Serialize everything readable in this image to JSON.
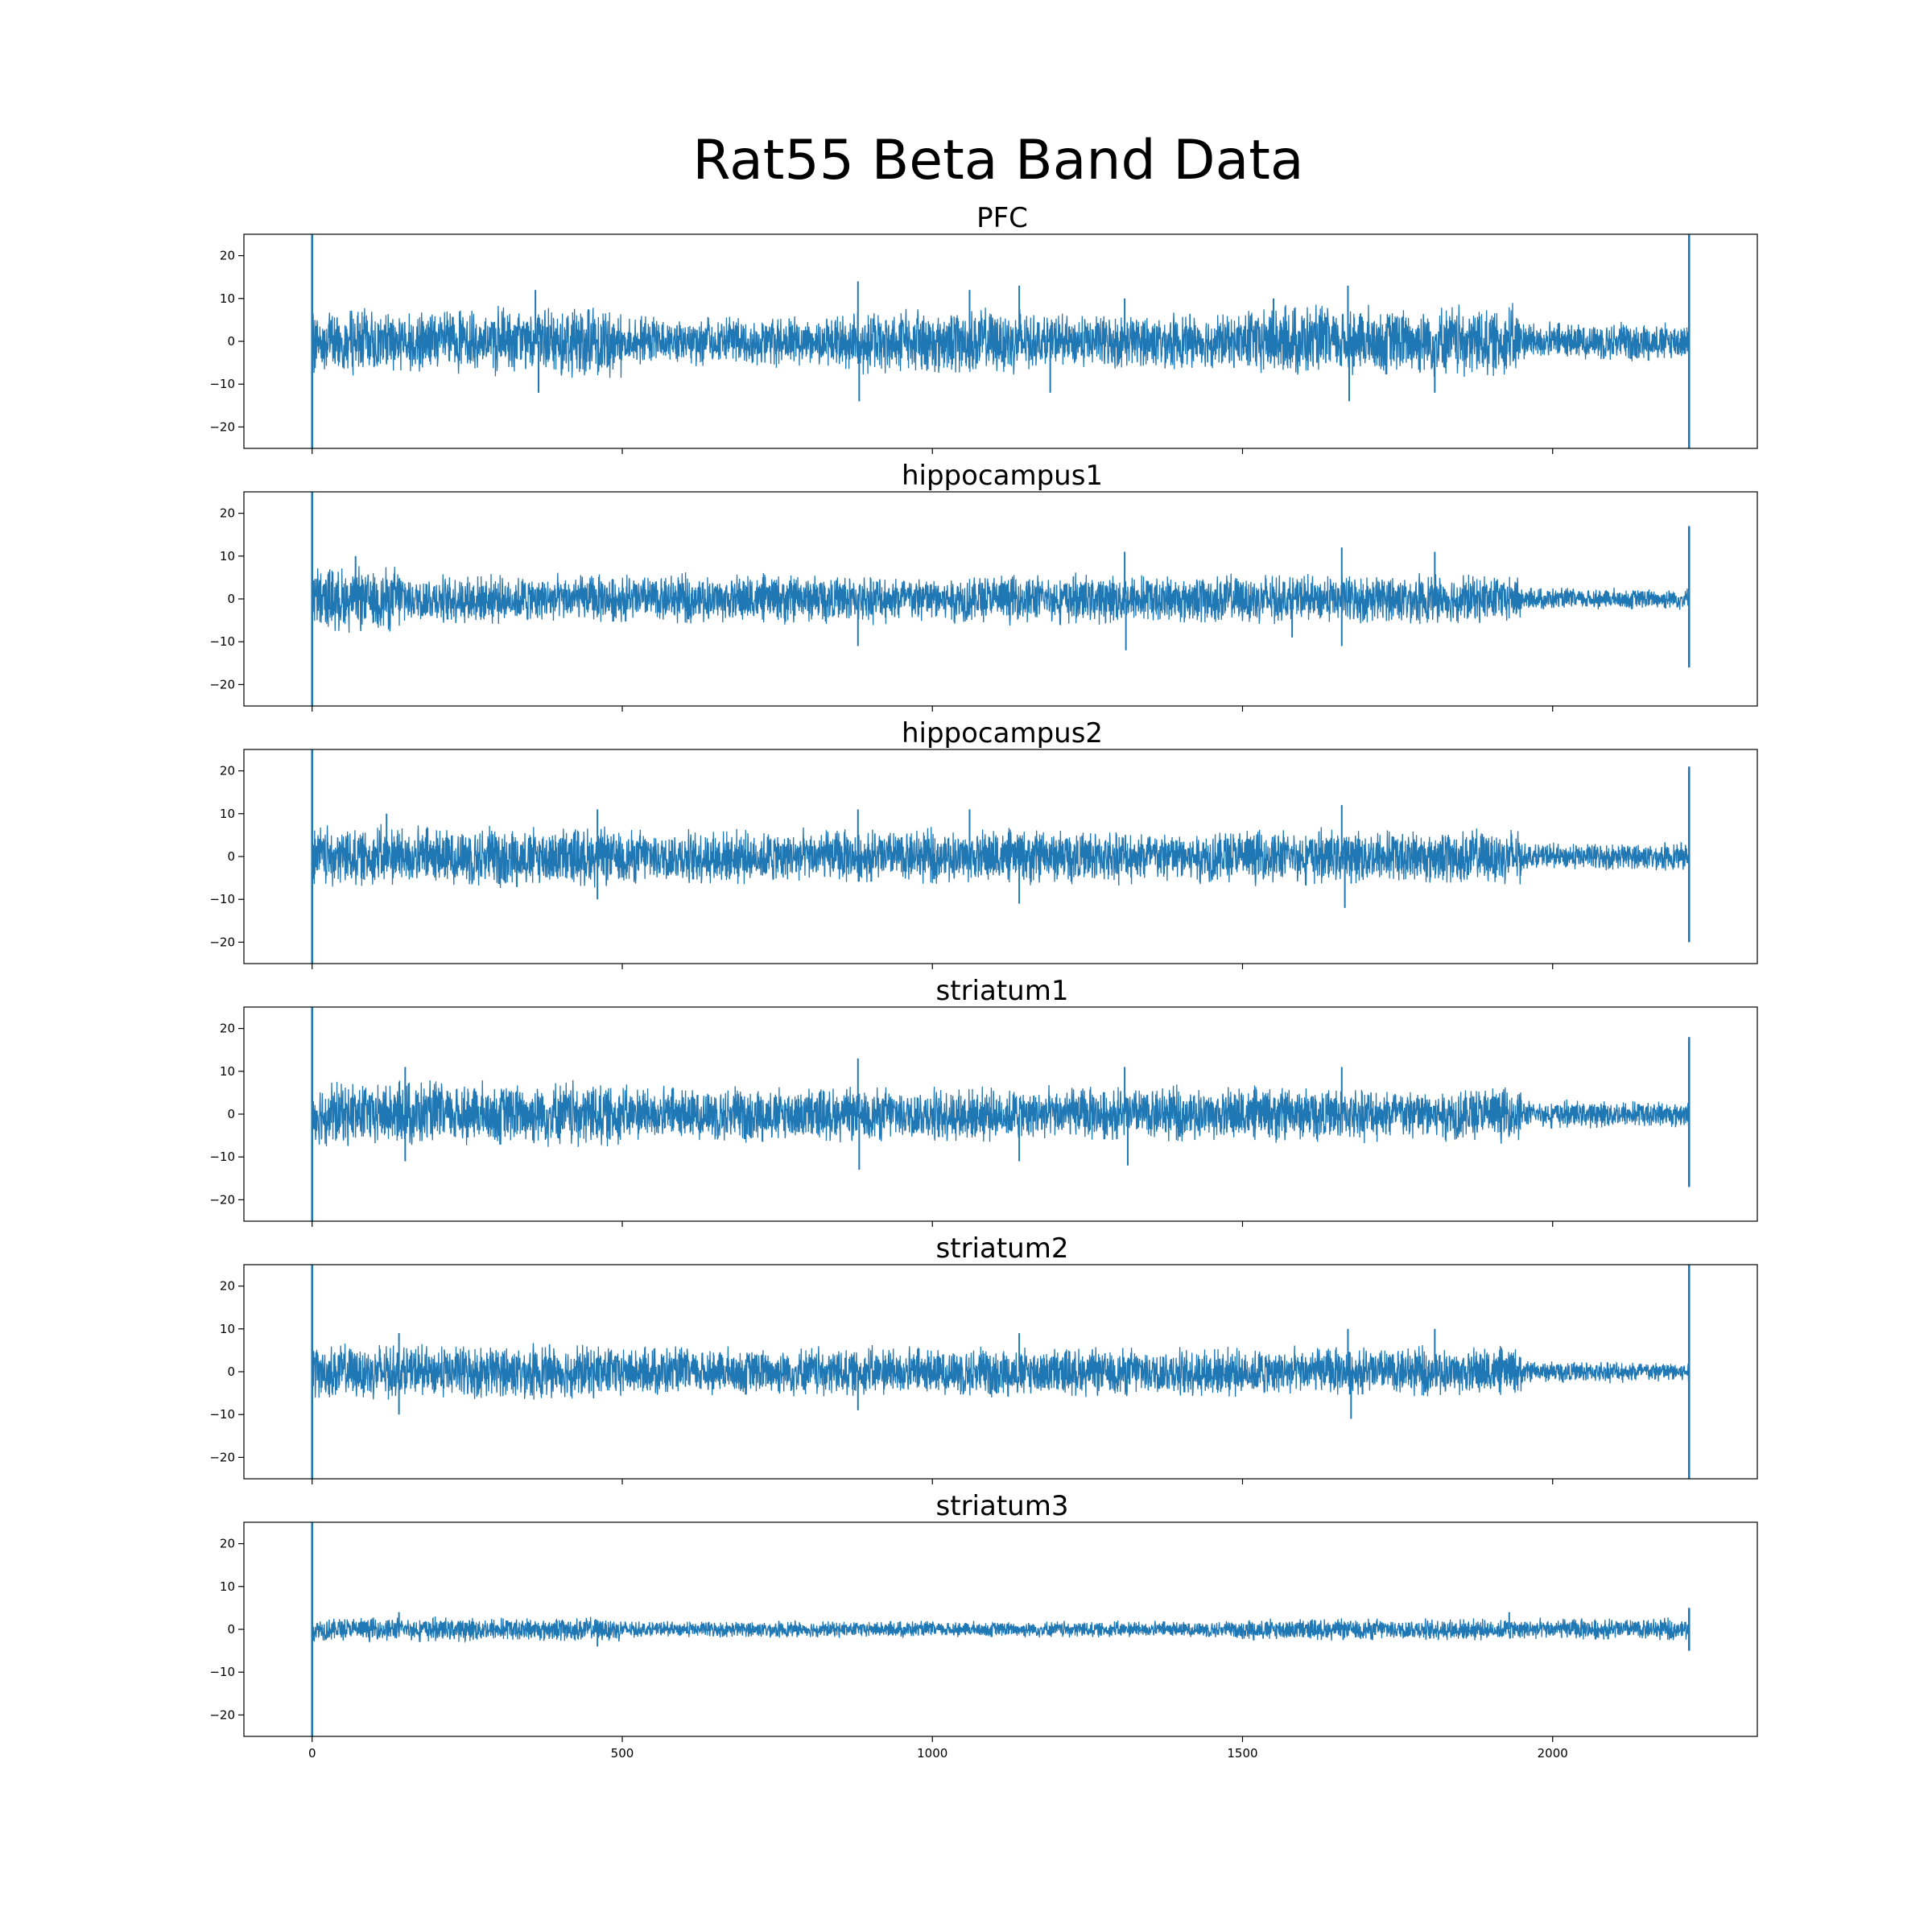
{
  "figure": {
    "title": "Rat55 Beta Band Data"
  },
  "chart_data": {
    "type": "line",
    "title": "Rat55 Beta Band Data",
    "line_color": "#1f77b4",
    "sharex": true,
    "xlim": [
      -110,
      2330
    ],
    "ylim": [
      -25,
      25
    ],
    "xticks": [
      0,
      500,
      1000,
      1500,
      2000
    ],
    "yticks": [
      -20,
      -10,
      0,
      10,
      20
    ],
    "ytick_labels": [
      "−20",
      "−10",
      "0",
      "10",
      "20"
    ],
    "x_range": [
      0,
      2220
    ],
    "grid": false,
    "panels": [
      {
        "title": "PFC",
        "start_spike": [
          -25,
          25
        ],
        "end_spike": [
          -25,
          25
        ],
        "segments": [
          {
            "x0": 0,
            "x1": 400,
            "amp": 6
          },
          {
            "x0": 400,
            "x1": 500,
            "amp": 7
          },
          {
            "x0": 500,
            "x1": 850,
            "amp": 4.5
          },
          {
            "x0": 850,
            "x1": 1150,
            "amp": 6
          },
          {
            "x0": 1150,
            "x1": 1500,
            "amp": 5
          },
          {
            "x0": 1500,
            "x1": 1950,
            "amp": 6.5
          },
          {
            "x0": 1950,
            "x1": 2220,
            "amp": 3.5
          }
        ],
        "peaks": [
          {
            "x": 360,
            "y": 12
          },
          {
            "x": 880,
            "y": 14
          },
          {
            "x": 882,
            "y": -14
          },
          {
            "x": 1060,
            "y": 12
          },
          {
            "x": 1140,
            "y": 13
          },
          {
            "x": 1190,
            "y": -12
          },
          {
            "x": 1310,
            "y": 10
          },
          {
            "x": 1550,
            "y": 10
          },
          {
            "x": 1670,
            "y": 13
          },
          {
            "x": 1672,
            "y": -14
          },
          {
            "x": 1810,
            "y": -12
          },
          {
            "x": 365,
            "y": -12
          }
        ]
      },
      {
        "title": "hippocampus1",
        "start_spike": [
          -25,
          25
        ],
        "end_spike": [
          -16,
          17
        ],
        "segments": [
          {
            "x0": 0,
            "x1": 150,
            "amp": 6
          },
          {
            "x0": 150,
            "x1": 880,
            "amp": 4.5
          },
          {
            "x0": 880,
            "x1": 1950,
            "amp": 4.5
          },
          {
            "x0": 1950,
            "x1": 2220,
            "amp": 2
          }
        ],
        "peaks": [
          {
            "x": 70,
            "y": 10
          },
          {
            "x": 880,
            "y": -11
          },
          {
            "x": 1310,
            "y": 11
          },
          {
            "x": 1312,
            "y": -12
          },
          {
            "x": 1660,
            "y": 12
          },
          {
            "x": 1810,
            "y": 11
          },
          {
            "x": 1660,
            "y": -11
          },
          {
            "x": 1580,
            "y": -9
          }
        ]
      },
      {
        "title": "hippocampus2",
        "start_spike": [
          -25,
          25
        ],
        "end_spike": [
          -20,
          21
        ],
        "segments": [
          {
            "x0": 0,
            "x1": 500,
            "amp": 5.5
          },
          {
            "x0": 500,
            "x1": 1950,
            "amp": 5
          },
          {
            "x0": 1950,
            "x1": 2220,
            "amp": 2.5
          }
        ],
        "peaks": [
          {
            "x": 120,
            "y": 10
          },
          {
            "x": 460,
            "y": 11
          },
          {
            "x": 880,
            "y": 11
          },
          {
            "x": 1060,
            "y": 11
          },
          {
            "x": 1660,
            "y": 12
          },
          {
            "x": 1665,
            "y": -12
          },
          {
            "x": 1140,
            "y": -11
          },
          {
            "x": 460,
            "y": -10
          }
        ]
      },
      {
        "title": "striatum1",
        "start_spike": [
          -25,
          25
        ],
        "end_spike": [
          -17,
          18
        ],
        "segments": [
          {
            "x0": 0,
            "x1": 500,
            "amp": 6
          },
          {
            "x0": 500,
            "x1": 1950,
            "amp": 5
          },
          {
            "x0": 1950,
            "x1": 2220,
            "amp": 2.5
          }
        ],
        "peaks": [
          {
            "x": 150,
            "y": 11
          },
          {
            "x": 880,
            "y": 13
          },
          {
            "x": 882,
            "y": -13
          },
          {
            "x": 1310,
            "y": 11
          },
          {
            "x": 1315,
            "y": -12
          },
          {
            "x": 1660,
            "y": 11
          },
          {
            "x": 150,
            "y": -11
          },
          {
            "x": 1140,
            "y": -11
          }
        ]
      },
      {
        "title": "striatum2",
        "start_spike": [
          -25,
          25
        ],
        "end_spike": [
          -25,
          25
        ],
        "segments": [
          {
            "x0": 0,
            "x1": 500,
            "amp": 5
          },
          {
            "x0": 500,
            "x1": 1950,
            "amp": 4.5
          },
          {
            "x0": 1950,
            "x1": 2220,
            "amp": 2
          }
        ],
        "peaks": [
          {
            "x": 140,
            "y": 9
          },
          {
            "x": 880,
            "y": -9
          },
          {
            "x": 1140,
            "y": 9
          },
          {
            "x": 1670,
            "y": 10
          },
          {
            "x": 1810,
            "y": 10
          },
          {
            "x": 1675,
            "y": -11
          },
          {
            "x": 140,
            "y": -10
          }
        ]
      },
      {
        "title": "striatum3",
        "start_spike": [
          -25,
          25
        ],
        "end_spike": [
          -5,
          5
        ],
        "segments": [
          {
            "x0": 0,
            "x1": 500,
            "amp": 2.2
          },
          {
            "x0": 500,
            "x1": 1150,
            "amp": 1.5
          },
          {
            "x0": 1150,
            "x1": 1500,
            "amp": 1.5
          },
          {
            "x0": 1500,
            "x1": 2220,
            "amp": 2
          }
        ],
        "peaks": [
          {
            "x": 140,
            "y": 4
          },
          {
            "x": 460,
            "y": -4
          },
          {
            "x": 1930,
            "y": 4
          }
        ]
      }
    ]
  }
}
